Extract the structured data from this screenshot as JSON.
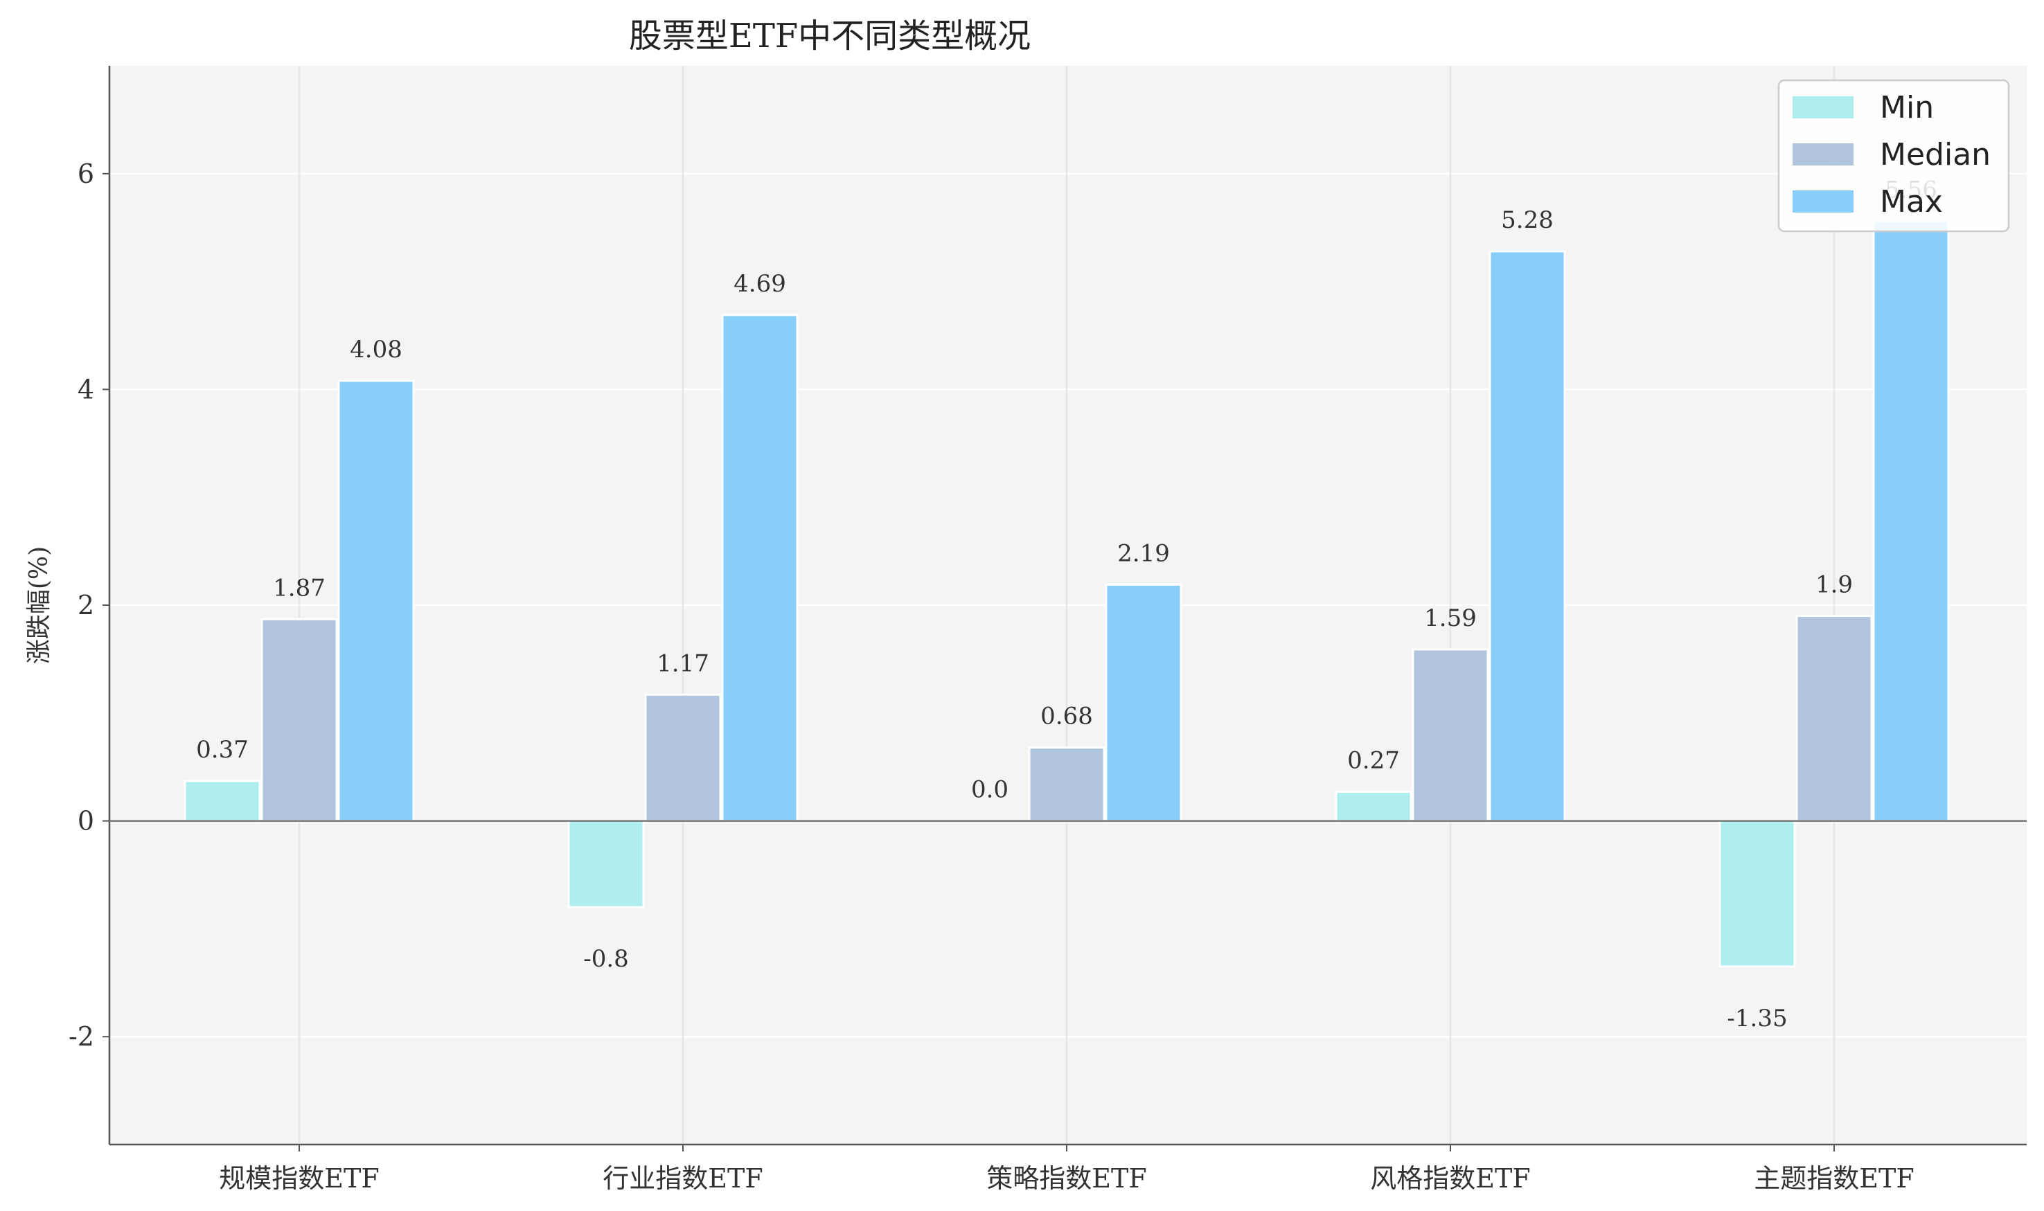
{
  "chart_data": {
    "type": "bar",
    "title": "股票型ETF中不同类型概况",
    "xlabel": "",
    "ylabel": "涨跌幅(%)",
    "categories": [
      "规模指数ETF",
      "行业指数ETF",
      "策略指数ETF",
      "风格指数ETF",
      "主题指数ETF"
    ],
    "series": [
      {
        "name": "Min",
        "values": [
          0.37,
          -0.8,
          0.0,
          0.27,
          -1.35
        ],
        "color": "#AFEEEE"
      },
      {
        "name": "Median",
        "values": [
          1.87,
          1.17,
          0.68,
          1.59,
          1.9
        ],
        "color": "#B0C4DE"
      },
      {
        "name": "Max",
        "values": [
          4.08,
          4.69,
          2.19,
          5.28,
          5.56
        ],
        "color": "#87CEFA"
      }
    ],
    "data_labels": [
      [
        "0.37",
        "-0.8",
        "0.0",
        "0.27",
        "-1.35"
      ],
      [
        "1.87",
        "1.17",
        "0.68",
        "1.59",
        "1.9"
      ],
      [
        "4.08",
        "4.69",
        "2.19",
        "5.28",
        "5.56"
      ]
    ],
    "ylim": [
      -3,
      7
    ],
    "yticks": [
      -2,
      0,
      2,
      4,
      6
    ],
    "ytick_labels": [
      "-2",
      "0",
      "2",
      "4",
      "6"
    ],
    "grid": true,
    "legend_position": "top-right",
    "background": "#F4F4F4"
  }
}
